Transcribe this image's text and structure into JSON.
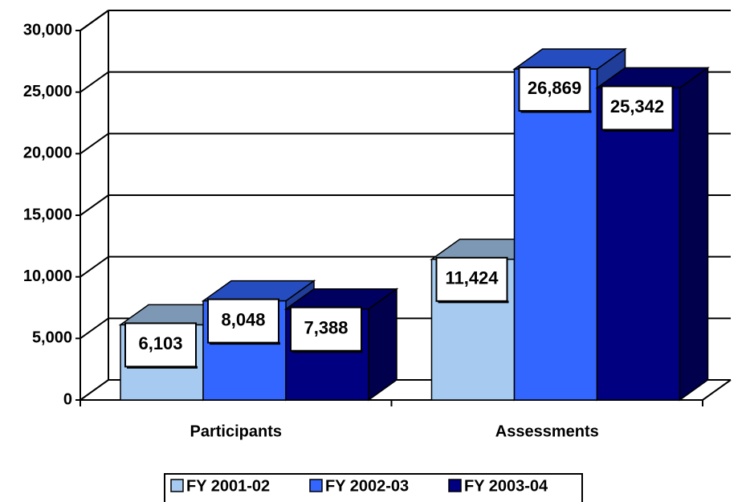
{
  "chart_data": {
    "type": "bar3d",
    "categories": [
      "Participants",
      "Assessments"
    ],
    "series": [
      {
        "name": "FY 2001-02",
        "color": "#a6caf0",
        "values": [
          6103,
          11424
        ],
        "value_labels": [
          "6,103",
          "11,424"
        ]
      },
      {
        "name": "FY 2002-03",
        "color": "#3366ff",
        "values": [
          8048,
          26869
        ],
        "value_labels": [
          "8,048",
          "26,869"
        ]
      },
      {
        "name": "FY 2003-04",
        "color": "#000080",
        "values": [
          7388,
          25342
        ],
        "value_labels": [
          "7,388",
          "25,342"
        ]
      }
    ],
    "ylim": [
      0,
      30000
    ],
    "yticks": [
      0,
      {
        "value": 5000,
        "label": "5,000"
      },
      {
        "value": 10000,
        "label": "10,000"
      },
      {
        "value": 15000,
        "label": "15,000"
      },
      {
        "value": 20000,
        "label": "20,000"
      },
      {
        "value": 25000,
        "label": "25,000"
      },
      {
        "value": 30000,
        "label": "30,000"
      }
    ],
    "grid": true,
    "legend": "bottom"
  }
}
